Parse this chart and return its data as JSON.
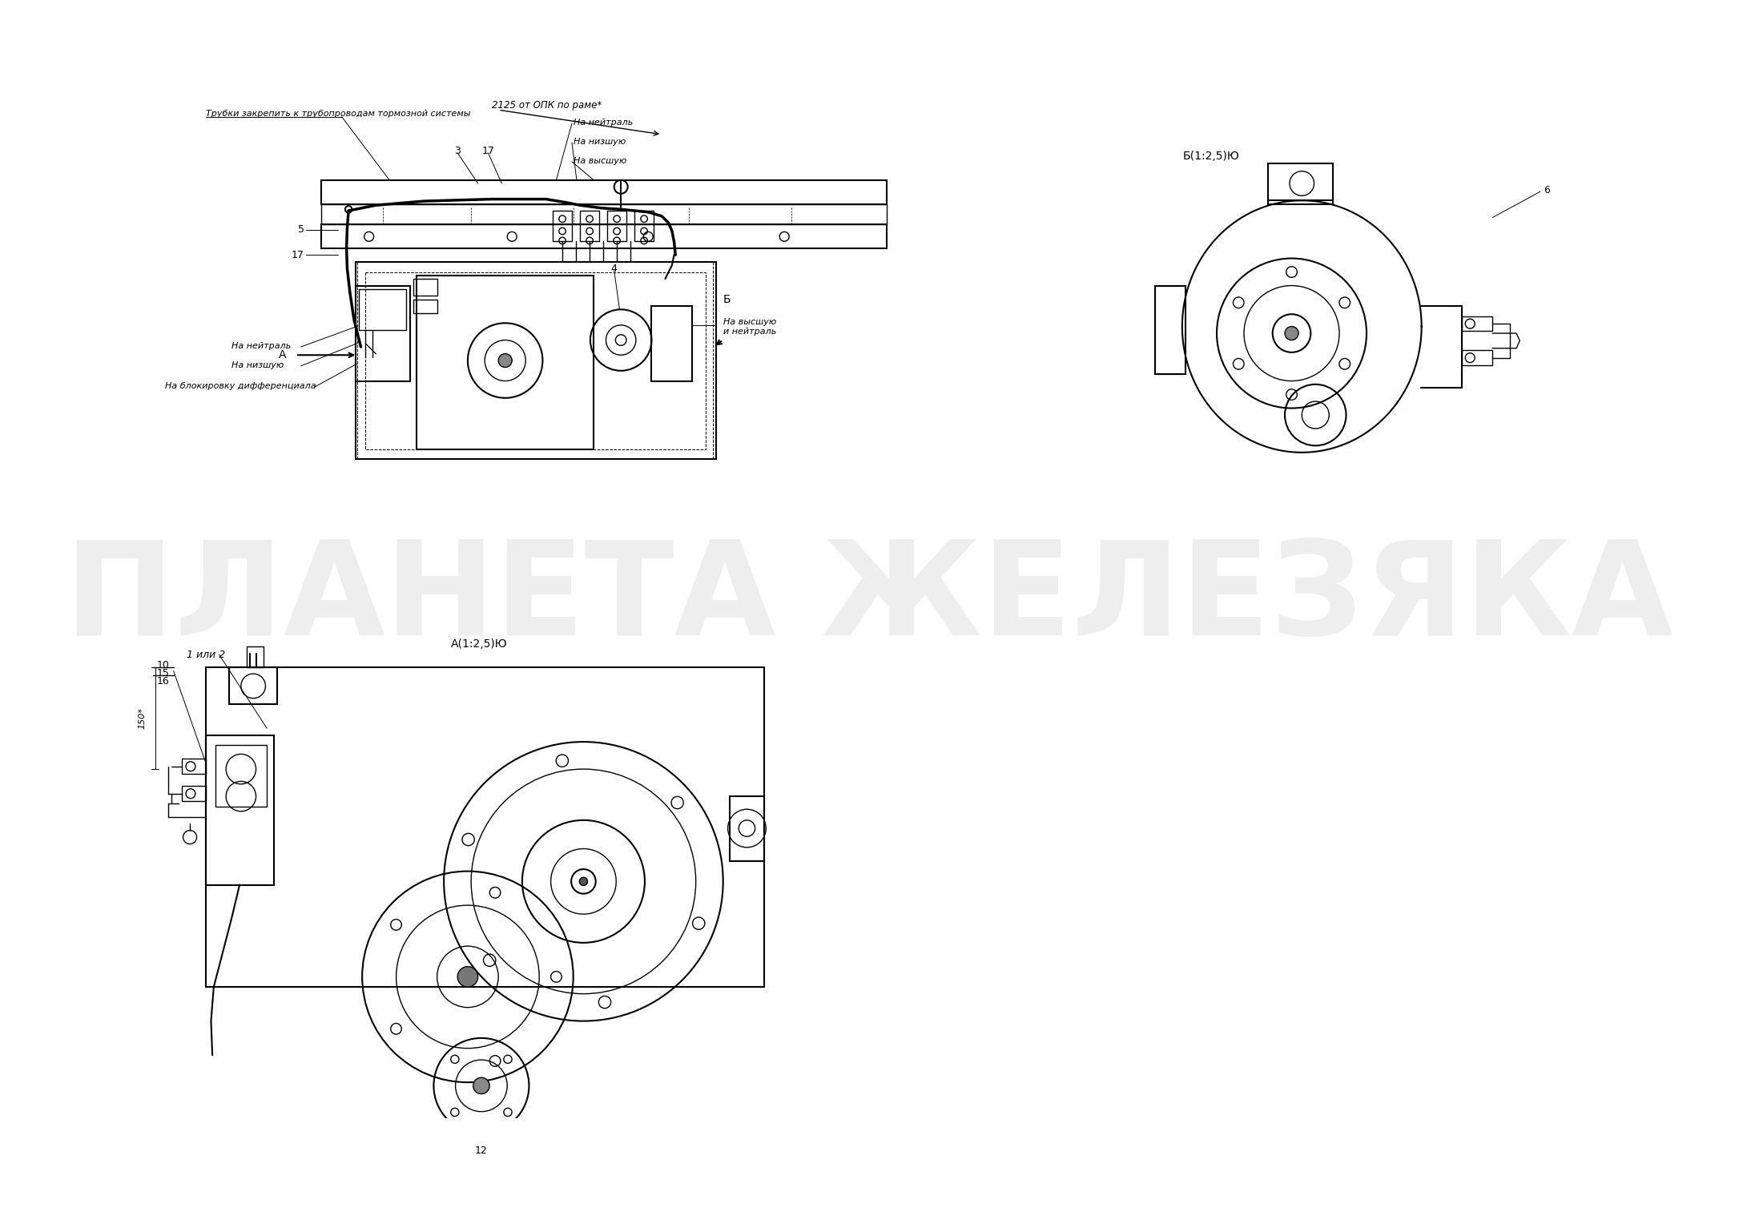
{
  "background_color": "#ffffff",
  "fig_width": 21.71,
  "fig_height": 15.33,
  "dpi": 100,
  "watermark_text": "ПЛАНЕТА ЖЕЛЕЗЯКА",
  "annotations": {
    "top_note1": "Трубки закрепить к трубопроводам тормозной системы",
    "top_note2": "2125 от ОПК по раме*",
    "neutral_top": "На нейтраль",
    "low_top": "На низшую",
    "high_top": "На высшую",
    "high_neutral_right": "На высшую\nи нейтраль",
    "neutral_left": "На нейтраль",
    "low_left": "На низшую",
    "diff_lock": "На блокировку дифференциала",
    "view_A": "А(1:2,5)Ю",
    "view_B": "Б(1:2,5)Ю",
    "label_6": "6",
    "label_10": "10",
    "label_15": "15",
    "label_16": "16",
    "label_1or2": "1 или 2",
    "label_12": "12",
    "dim_150": "150*"
  },
  "line_color": "#000000",
  "text_color": "#000000",
  "watermark_color": "#d0d0d0",
  "watermark_alpha": 0.35
}
